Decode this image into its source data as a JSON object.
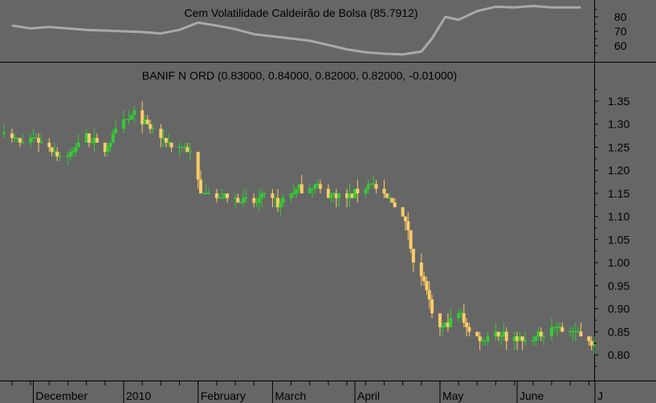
{
  "chart_data": [
    {
      "type": "line",
      "title": "Cem Volatilidade Caldeirão de Bolsa (85.7912)",
      "ylim": [
        50,
        92
      ],
      "yticks": [
        60,
        70,
        80
      ],
      "grid": false,
      "color": "#a9a9a9",
      "series": [
        {
          "x": [
            "2009-11-23",
            "2009-11-30",
            "2009-12-07",
            "2009-12-14",
            "2009-12-21",
            "2009-12-28",
            "2010-01-04",
            "2010-01-11",
            "2010-01-18",
            "2010-01-25",
            "2010-02-01",
            "2010-02-08",
            "2010-02-15",
            "2010-02-22",
            "2010-03-01",
            "2010-03-08",
            "2010-03-15",
            "2010-03-22",
            "2010-03-29",
            "2010-04-05",
            "2010-04-12",
            "2010-04-19",
            "2010-04-26",
            "2010-04-30",
            "2010-05-05",
            "2010-05-10",
            "2010-05-17",
            "2010-05-24",
            "2010-05-31",
            "2010-06-07",
            "2010-06-14",
            "2010-06-21",
            "2010-06-25"
          ],
          "values": [
            74,
            72,
            73,
            72,
            71,
            70.5,
            70,
            69.5,
            68.5,
            71,
            76,
            74,
            71.5,
            68,
            66.5,
            65,
            63.5,
            60.5,
            57.5,
            55.5,
            54.5,
            54,
            56,
            65,
            80,
            78,
            84,
            87,
            86.5,
            87.5,
            86.5,
            86.5,
            86.5
          ]
        }
      ]
    },
    {
      "type": "candlestick",
      "title": "BANIF N ORD (0.83000, 0.84000, 0.82000, 0.82000, -0.01000)",
      "ylim": [
        0.76,
        1.38
      ],
      "yticks": [
        "0.80",
        "0.85",
        "0.90",
        "0.95",
        "1.00",
        "1.05",
        "1.10",
        "1.15",
        "1.20",
        "1.25",
        "1.30",
        "1.35"
      ],
      "grid": false,
      "colors": {
        "up": "#33cc33",
        "down": "#ffcc66"
      },
      "x_start": "2009-11-20",
      "x_end": "2010-06-30",
      "x_tick_labels": [
        {
          "label": "December",
          "date": "2009-12-01"
        },
        {
          "label": "2010",
          "date": "2010-01-04"
        },
        {
          "label": "February",
          "date": "2010-02-01"
        },
        {
          "label": "March",
          "date": "2010-03-01"
        },
        {
          "label": "April",
          "date": "2010-04-01"
        },
        {
          "label": "May",
          "date": "2010-05-03"
        },
        {
          "label": "June",
          "date": "2010-06-01"
        },
        {
          "label": "J",
          "date": "2010-07-01"
        }
      ],
      "close_anchors": {
        "dates": [
          "2009-11-20",
          "2009-11-26",
          "2009-12-02",
          "2009-12-08",
          "2009-12-12",
          "2009-12-16",
          "2009-12-20",
          "2009-12-24",
          "2009-12-28",
          "2010-01-01",
          "2010-01-05",
          "2010-01-09",
          "2010-01-13",
          "2010-01-17",
          "2010-01-21",
          "2010-01-25",
          "2010-01-29",
          "2010-02-02",
          "2010-02-04",
          "2010-02-08",
          "2010-02-14",
          "2010-02-20",
          "2010-02-26",
          "2010-03-04",
          "2010-03-10",
          "2010-03-16",
          "2010-03-22",
          "2010-03-28",
          "2010-04-03",
          "2010-04-07",
          "2010-04-13",
          "2010-04-17",
          "2010-04-21",
          "2010-04-23",
          "2010-04-27",
          "2010-04-29",
          "2010-05-01",
          "2010-05-05",
          "2010-05-07",
          "2010-05-11",
          "2010-05-15",
          "2010-05-19",
          "2010-05-23",
          "2010-05-27",
          "2010-05-31",
          "2010-06-04",
          "2010-06-08",
          "2010-06-14",
          "2010-06-20",
          "2010-06-26",
          "2010-06-30"
        ],
        "values": [
          1.29,
          1.26,
          1.27,
          1.25,
          1.22,
          1.24,
          1.28,
          1.26,
          1.24,
          1.28,
          1.31,
          1.32,
          1.3,
          1.27,
          1.26,
          1.25,
          1.24,
          1.15,
          1.16,
          1.14,
          1.14,
          1.13,
          1.14,
          1.13,
          1.16,
          1.17,
          1.15,
          1.14,
          1.16,
          1.17,
          1.14,
          1.12,
          1.07,
          1.0,
          0.96,
          0.91,
          0.86,
          0.86,
          0.87,
          0.89,
          0.84,
          0.83,
          0.85,
          0.84,
          0.84,
          0.83,
          0.84,
          0.86,
          0.85,
          0.84,
          0.82
        ]
      }
    }
  ]
}
